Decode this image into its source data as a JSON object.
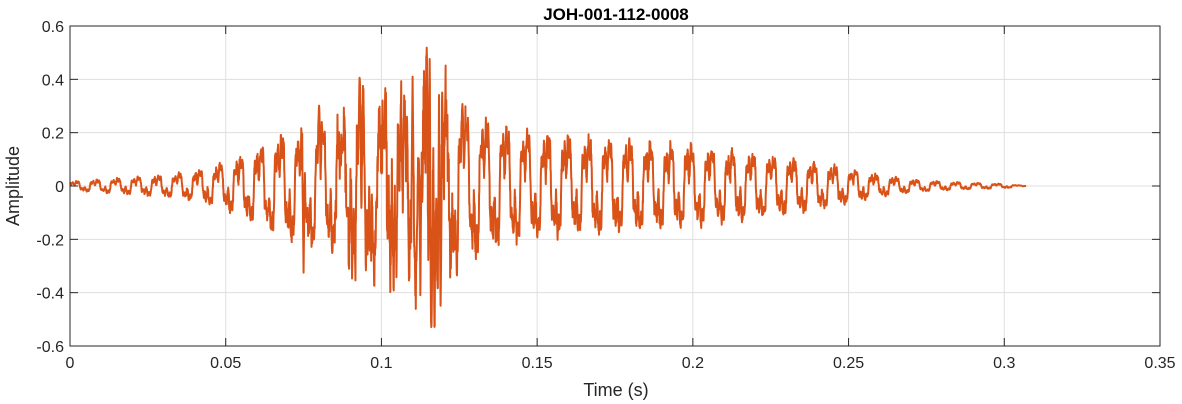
{
  "chart_data": {
    "type": "line",
    "title": "JOH-001-112-0008",
    "xlabel": "Time (s)",
    "ylabel": "Amplitude",
    "xlim": [
      0,
      0.35
    ],
    "ylim": [
      -0.6,
      0.6
    ],
    "grid": true,
    "xticks": [
      0,
      0.05,
      0.1,
      0.15,
      0.2,
      0.25,
      0.3,
      0.35
    ],
    "xtick_labels": [
      "0",
      "0.05",
      "0.1",
      "0.15",
      "0.2",
      "0.25",
      "0.3",
      "0.35"
    ],
    "yticks": [
      -0.6,
      -0.4,
      -0.2,
      0,
      0.2,
      0.4,
      0.6
    ],
    "ytick_labels": [
      "-0.6",
      "-0.4",
      "-0.2",
      "0",
      "0.2",
      "0.4",
      "0.6"
    ],
    "series": [
      {
        "color": "#d95319",
        "duration": 0.307,
        "envelope": {
          "t": [
            0,
            0.01,
            0.02,
            0.03,
            0.04,
            0.05,
            0.06,
            0.07,
            0.08,
            0.09,
            0.095,
            0.1,
            0.105,
            0.11,
            0.115,
            0.12,
            0.13,
            0.14,
            0.15,
            0.16,
            0.17,
            0.18,
            0.19,
            0.2,
            0.21,
            0.22,
            0.23,
            0.24,
            0.25,
            0.26,
            0.27,
            0.28,
            0.29,
            0.3,
            0.307
          ],
          "amplitude": [
            0.02,
            0.03,
            0.04,
            0.05,
            0.07,
            0.11,
            0.17,
            0.25,
            0.29,
            0.3,
            0.35,
            0.38,
            0.33,
            0.42,
            0.5,
            0.4,
            0.32,
            0.27,
            0.24,
            0.23,
            0.22,
            0.21,
            0.2,
            0.19,
            0.17,
            0.15,
            0.13,
            0.11,
            0.08,
            0.05,
            0.03,
            0.02,
            0.015,
            0.01,
            0.0
          ]
        },
        "peaks": [
          {
            "t": 0.1155,
            "value": 0.49
          },
          {
            "t": 0.116,
            "value": -0.53
          },
          {
            "t": 0.1125,
            "value": -0.42
          },
          {
            "t": 0.119,
            "value": -0.45
          },
          {
            "t": 0.11,
            "value": 0.42
          },
          {
            "t": 0.093,
            "value": 0.41
          },
          {
            "t": 0.095,
            "value": -0.35
          },
          {
            "t": 0.08,
            "value": 0.31
          },
          {
            "t": 0.075,
            "value": -0.33
          },
          {
            "t": 0.126,
            "value": 0.31
          }
        ]
      }
    ]
  }
}
